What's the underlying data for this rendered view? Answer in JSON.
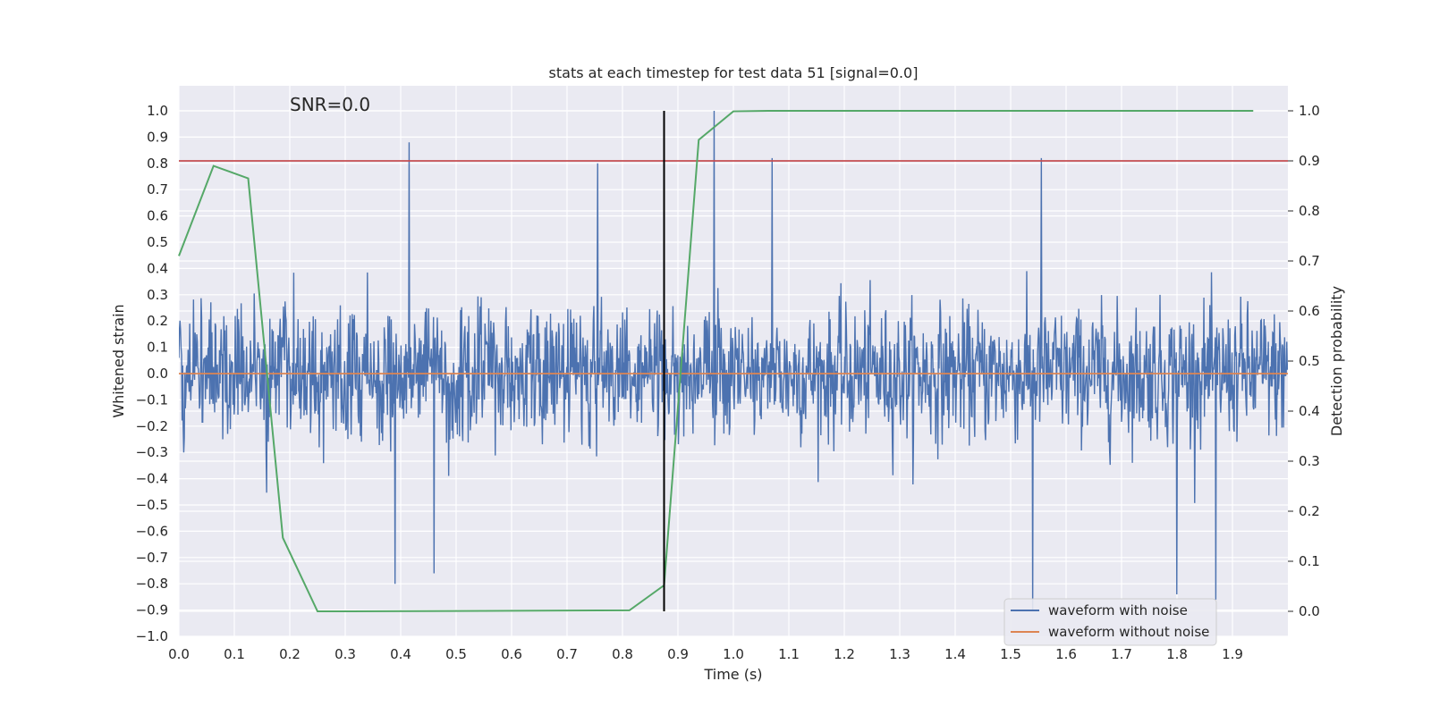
{
  "chart_data": {
    "type": "line",
    "title": "stats at each timestep for test data 51 [signal=0.0]",
    "xlabel": "Time (s)",
    "ylabel_left": "Whitened strain",
    "ylabel_right": "Detection probability",
    "annotation": "SNR=0.0",
    "xlim": [
      0.0,
      2.0
    ],
    "ylim_left": [
      -1.0,
      1.0
    ],
    "ylim_right": [
      0.0,
      1.0
    ],
    "x_ticks": [
      0.0,
      0.1,
      0.2,
      0.3,
      0.4,
      0.5,
      0.6,
      0.7,
      0.8,
      0.9,
      1.0,
      1.1,
      1.2,
      1.3,
      1.4,
      1.5,
      1.6,
      1.7,
      1.8,
      1.9
    ],
    "x_tick_labels": [
      "0.0",
      "0.1",
      "0.2",
      "0.3",
      "0.4",
      "0.5",
      "0.6",
      "0.7",
      "0.8",
      "0.9",
      "1.0",
      "1.1",
      "1.2",
      "1.3",
      "1.4",
      "1.5",
      "1.6",
      "1.7",
      "1.8",
      "1.9"
    ],
    "y_left_ticks": [
      -1.0,
      -0.9,
      -0.8,
      -0.7,
      -0.6,
      -0.5,
      -0.4,
      -0.3,
      -0.2,
      -0.1,
      0.0,
      0.1,
      0.2,
      0.3,
      0.4,
      0.5,
      0.6,
      0.7,
      0.8,
      0.9,
      1.0
    ],
    "y_left_tick_labels": [
      "−1.0",
      "−0.9",
      "−0.8",
      "−0.7",
      "−0.6",
      "−0.5",
      "−0.4",
      "−0.3",
      "−0.2",
      "−0.1",
      "0.0",
      "0.1",
      "0.2",
      "0.3",
      "0.4",
      "0.5",
      "0.6",
      "0.7",
      "0.8",
      "0.9",
      "1.0"
    ],
    "y_right_ticks": [
      0.0,
      0.1,
      0.2,
      0.3,
      0.4,
      0.5,
      0.6,
      0.7,
      0.8,
      0.9,
      1.0
    ],
    "y_right_tick_labels": [
      "0.0",
      "0.1",
      "0.2",
      "0.3",
      "0.4",
      "0.5",
      "0.6",
      "0.7",
      "0.8",
      "0.9",
      "1.0"
    ],
    "grid": true,
    "legend_position": "lower-right",
    "series": [
      {
        "name": "waveform with noise",
        "axis": "left",
        "color": "#4c72b0",
        "style": "dense noise trace",
        "sample_count": 2048,
        "dt": 0.000977,
        "amplitude_range": [
          -0.9,
          1.0
        ],
        "notable_peaks": [
          {
            "x": 0.415,
            "y": 0.88
          },
          {
            "x": 0.755,
            "y": 0.8
          },
          {
            "x": 0.965,
            "y": 1.0
          },
          {
            "x": 1.07,
            "y": 0.82
          },
          {
            "x": 1.555,
            "y": 0.82
          },
          {
            "x": 0.39,
            "y": -0.8
          },
          {
            "x": 0.46,
            "y": -0.76
          },
          {
            "x": 1.54,
            "y": -0.9
          },
          {
            "x": 1.8,
            "y": -0.84
          },
          {
            "x": 1.87,
            "y": -0.86
          }
        ]
      },
      {
        "name": "waveform without noise",
        "axis": "left",
        "color": "#dd8452",
        "x": [
          0.0,
          2.0
        ],
        "y": [
          0.0,
          0.0
        ]
      },
      {
        "name": "",
        "axis": "right",
        "color": "#55a868",
        "x": [
          0.0,
          0.0625,
          0.125,
          0.1875,
          0.25,
          0.3125,
          0.8125,
          0.875,
          0.9375,
          1.0,
          1.0625,
          1.9375
        ],
        "y": [
          0.71,
          0.89,
          0.865,
          0.147,
          0.0,
          0.0,
          0.002,
          0.052,
          0.942,
          0.999,
          1.0,
          1.0
        ]
      }
    ],
    "reference_lines": [
      {
        "type": "horizontal",
        "axis": "right",
        "y": 0.9,
        "color": "#c44e52"
      },
      {
        "type": "vertical",
        "x": 0.875,
        "y_range": [
          0.0,
          1.0
        ],
        "color": "#000000"
      }
    ],
    "legend": [
      "waveform with noise",
      "waveform without noise"
    ]
  }
}
